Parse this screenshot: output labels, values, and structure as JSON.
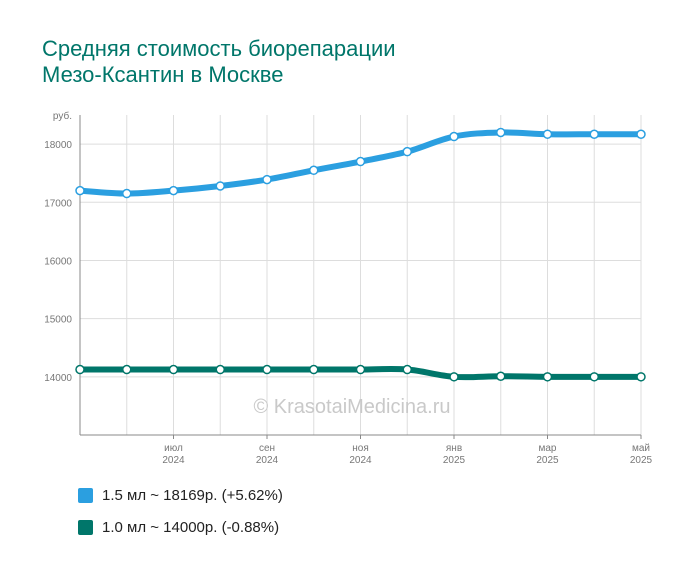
{
  "title_lines": [
    "Средняя стоимость биорепарации",
    "Мезо-Ксантин в Москве"
  ],
  "watermark": "© KrasotaiMedicina.ru",
  "colors": {
    "series1": "#2b9fe0",
    "series2": "#00766a",
    "title": "#00766a"
  },
  "chart_data": {
    "type": "line",
    "title": "Средняя стоимость биорепарации Мезо-Ксантин в Москве",
    "xlabel": "",
    "ylabel": "руб.",
    "ylim": [
      13000,
      18500
    ],
    "yticks": [
      14000,
      15000,
      16000,
      17000,
      18000
    ],
    "x": [
      "2024-05",
      "2024-06",
      "2024-07",
      "2024-08",
      "2024-09",
      "2024-10",
      "2024-11",
      "2024-12",
      "2025-01",
      "2025-02",
      "2025-03",
      "2025-04",
      "2025-05"
    ],
    "xtick_labels": [
      {
        "month": "июл",
        "year": "2024"
      },
      {
        "month": "сен",
        "year": "2024"
      },
      {
        "month": "ноя",
        "year": "2024"
      },
      {
        "month": "янв",
        "year": "2025"
      },
      {
        "month": "мар",
        "year": "2025"
      },
      {
        "month": "май",
        "year": "2025"
      }
    ],
    "series": [
      {
        "name": "1.5 мл",
        "legend": "1.5 мл ~ 18169р. (+5.62%)",
        "color": "#2b9fe0",
        "values": [
          17200,
          17150,
          17200,
          17280,
          17390,
          17550,
          17700,
          17870,
          18130,
          18200,
          18170,
          18169,
          18169
        ]
      },
      {
        "name": "1.0 мл",
        "legend": "1.0 мл ~ 14000р. (-0.88%)",
        "color": "#00766a",
        "values": [
          14125,
          14125,
          14125,
          14125,
          14125,
          14125,
          14125,
          14125,
          14000,
          14010,
          14000,
          14000,
          14000
        ]
      }
    ],
    "grid": true,
    "legend_position": "bottom-left"
  }
}
